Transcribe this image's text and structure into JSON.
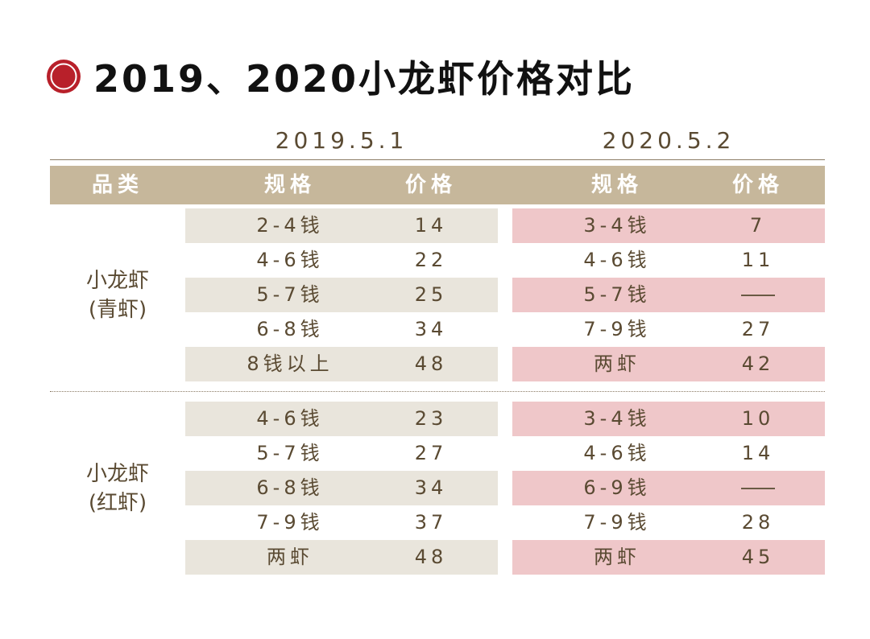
{
  "title": "2019、2020小龙虾价格对比",
  "dates": [
    "2019.5.1",
    "2020.5.2"
  ],
  "headers": {
    "category": "品类",
    "spec_2019": "规格",
    "price_2019": "价格",
    "spec_2020": "规格",
    "price_2020": "价格"
  },
  "colors": {
    "header_bg": "#c6b79b",
    "shade_2019": "#e9e5dc",
    "shade_2020": "#efc7c9",
    "title_icon": "#b8202a",
    "text": "#5a4a32"
  },
  "groups": [
    {
      "category_line1": "小龙虾",
      "category_line2": "(青虾)",
      "rows": [
        {
          "spec_2019": "2-4钱",
          "price_2019": "14",
          "spec_2020": "3-4钱",
          "price_2020": "7"
        },
        {
          "spec_2019": "4-6钱",
          "price_2019": "22",
          "spec_2020": "4-6钱",
          "price_2020": "11"
        },
        {
          "spec_2019": "5-7钱",
          "price_2019": "25",
          "spec_2020": "5-7钱",
          "price_2020": "—"
        },
        {
          "spec_2019": "6-8钱",
          "price_2019": "34",
          "spec_2020": "7-9钱",
          "price_2020": "27"
        },
        {
          "spec_2019": "8钱以上",
          "price_2019": "48",
          "spec_2020": "两虾",
          "price_2020": "42"
        }
      ]
    },
    {
      "category_line1": "小龙虾",
      "category_line2": "(红虾)",
      "rows": [
        {
          "spec_2019": "4-6钱",
          "price_2019": "23",
          "spec_2020": "3-4钱",
          "price_2020": "10"
        },
        {
          "spec_2019": "5-7钱",
          "price_2019": "27",
          "spec_2020": "4-6钱",
          "price_2020": "14"
        },
        {
          "spec_2019": "6-8钱",
          "price_2019": "34",
          "spec_2020": "6-9钱",
          "price_2020": "—"
        },
        {
          "spec_2019": "7-9钱",
          "price_2019": "37",
          "spec_2020": "7-9钱",
          "price_2020": "28"
        },
        {
          "spec_2019": "两虾",
          "price_2019": "48",
          "spec_2020": "两虾",
          "price_2020": "45"
        }
      ]
    }
  ]
}
